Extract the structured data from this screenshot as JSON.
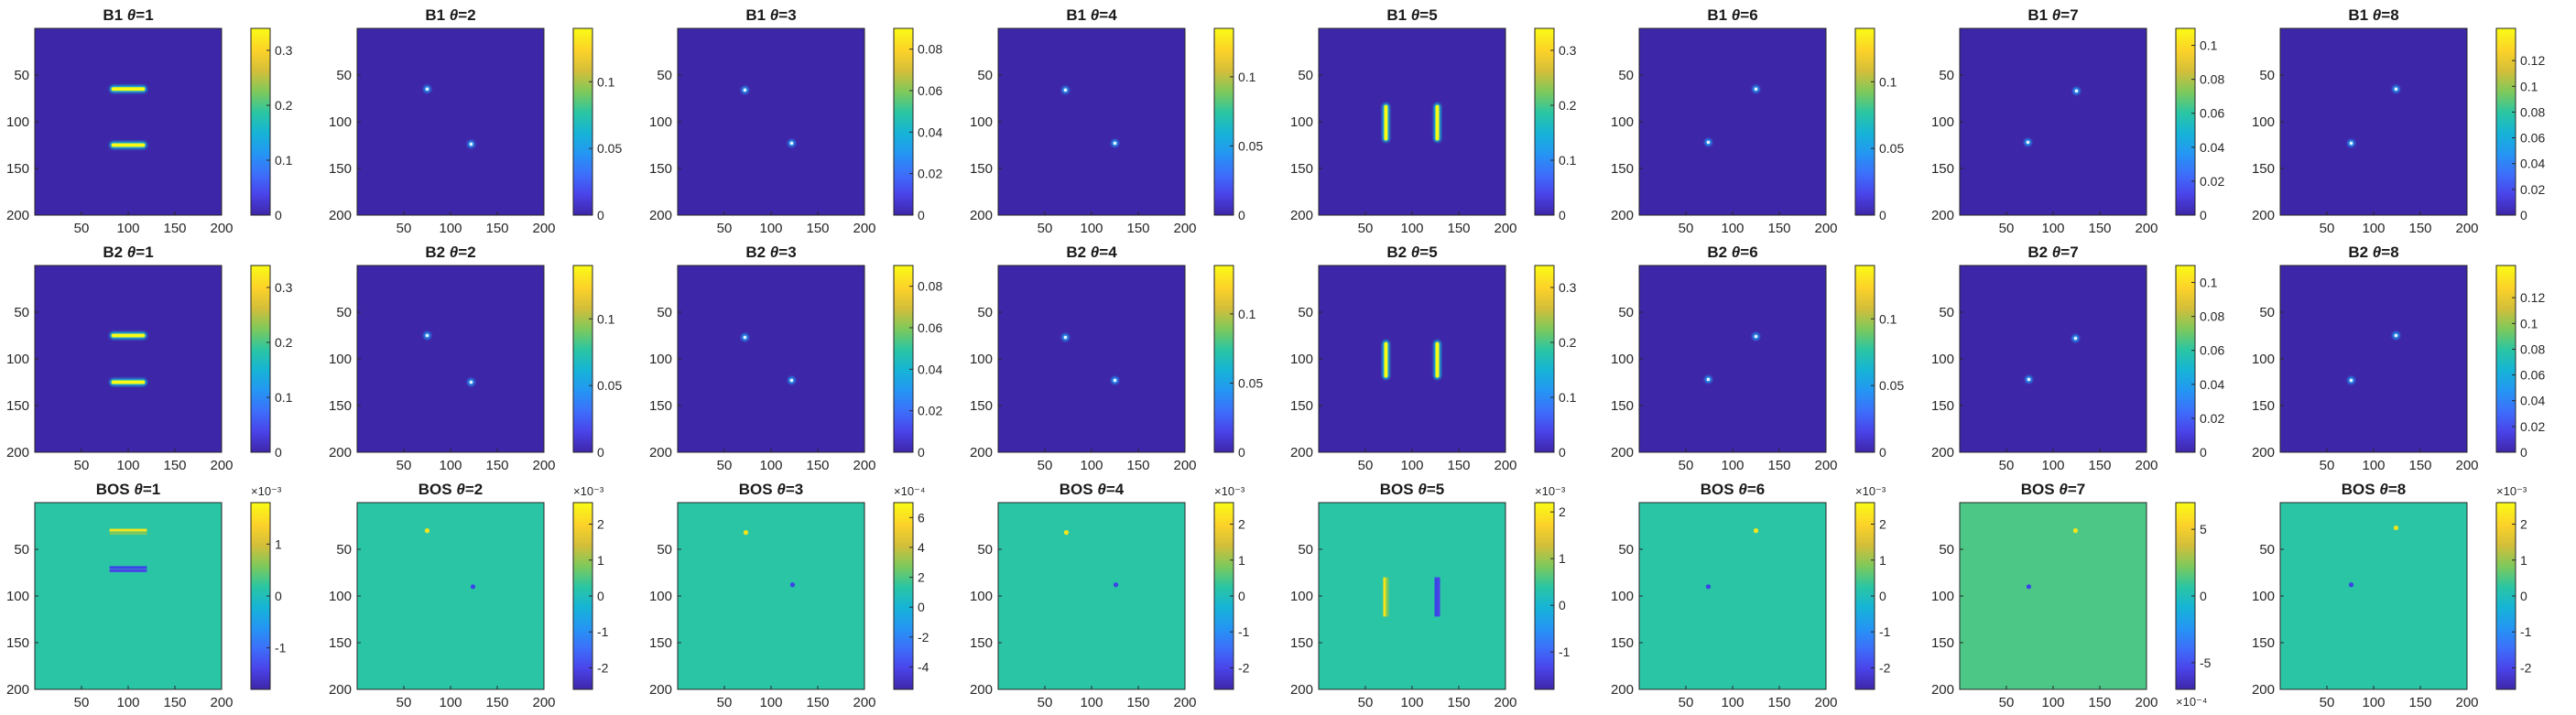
{
  "colors": {
    "background": "#3e26a8",
    "axis": "#262626",
    "colormap": [
      "#3e26a8",
      "#4a43e9",
      "#3d6ffb",
      "#2496f3",
      "#16b4d6",
      "#2bc6a2",
      "#7ec95b",
      "#d3be3a",
      "#fcd229",
      "#f9fb15"
    ]
  },
  "chart_data": {
    "type": "heatmap",
    "grid": "8 columns x 3 rows",
    "axes": {
      "x_ticks": [
        "50",
        "100",
        "150",
        "200"
      ],
      "y_ticks": [
        "50",
        "100",
        "150",
        "200"
      ],
      "xlim": [
        0,
        200
      ],
      "ylim": [
        0,
        200
      ]
    },
    "panels": [
      {
        "title_prefix": "B1",
        "theta": "1",
        "colorbar_ticks": [
          "0",
          "0.1",
          "0.2",
          "0.3"
        ],
        "colorbar_range": [
          0,
          0.34
        ],
        "feature": "horizontal bars at y=65 and y=125, x 80-120",
        "base": 0
      },
      {
        "title_prefix": "B1",
        "theta": "2",
        "colorbar_ticks": [
          "0",
          "0.05",
          "0.1"
        ],
        "colorbar_range": [
          0,
          0.14
        ],
        "feature": "points at (75,65) and (122,124)",
        "base": 0
      },
      {
        "title_prefix": "B1",
        "theta": "3",
        "colorbar_ticks": [
          "0",
          "0.02",
          "0.04",
          "0.06",
          "0.08"
        ],
        "colorbar_range": [
          0,
          0.09
        ],
        "feature": "points at (72,66) and (122,123)",
        "base": 0
      },
      {
        "title_prefix": "B1",
        "theta": "4",
        "colorbar_ticks": [
          "0",
          "0.05",
          "0.1"
        ],
        "colorbar_range": [
          0,
          0.135
        ],
        "feature": "points at (72,66) and (125,123)",
        "base": 0
      },
      {
        "title_prefix": "B1",
        "theta": "5",
        "colorbar_ticks": [
          "0",
          "0.1",
          "0.2",
          "0.3"
        ],
        "colorbar_range": [
          0,
          0.34
        ],
        "feature": "vertical bars at x=72 and x=127, y 80-122",
        "base": 0
      },
      {
        "title_prefix": "B1",
        "theta": "6",
        "colorbar_ticks": [
          "0",
          "0.05",
          "0.1"
        ],
        "colorbar_range": [
          0,
          0.14
        ],
        "feature": "points at (125,65) and (74,122)",
        "base": 0
      },
      {
        "title_prefix": "B1",
        "theta": "7",
        "colorbar_ticks": [
          "0",
          "0.02",
          "0.04",
          "0.06",
          "0.08",
          "0.1"
        ],
        "colorbar_range": [
          0,
          0.11
        ],
        "feature": "points at (125,67) and (73,122)",
        "base": 0
      },
      {
        "title_prefix": "B1",
        "theta": "8",
        "colorbar_ticks": [
          "0",
          "0.02",
          "0.04",
          "0.06",
          "0.08",
          "0.1",
          "0.12"
        ],
        "colorbar_range": [
          0,
          0.145
        ],
        "feature": "points at (124,65) and (76,123)",
        "base": 0
      },
      {
        "title_prefix": "B2",
        "theta": "1",
        "colorbar_ticks": [
          "0",
          "0.1",
          "0.2",
          "0.3"
        ],
        "colorbar_range": [
          0,
          0.34
        ],
        "feature": "horizontal bars at y=75 and y=125, x 80-120",
        "base": 0
      },
      {
        "title_prefix": "B2",
        "theta": "2",
        "colorbar_ticks": [
          "0",
          "0.05",
          "0.1"
        ],
        "colorbar_range": [
          0,
          0.14
        ],
        "feature": "points at (75,75) and (122,125)",
        "base": 0
      },
      {
        "title_prefix": "B2",
        "theta": "3",
        "colorbar_ticks": [
          "0",
          "0.02",
          "0.04",
          "0.06",
          "0.08"
        ],
        "colorbar_range": [
          0,
          0.09
        ],
        "feature": "points at (72,77) and (122,123)",
        "base": 0
      },
      {
        "title_prefix": "B2",
        "theta": "4",
        "colorbar_ticks": [
          "0",
          "0.05",
          "0.1"
        ],
        "colorbar_range": [
          0,
          0.135
        ],
        "feature": "points at (72,77) and (125,123)",
        "base": 0
      },
      {
        "title_prefix": "B2",
        "theta": "5",
        "colorbar_ticks": [
          "0",
          "0.1",
          "0.2",
          "0.3"
        ],
        "colorbar_range": [
          0,
          0.34
        ],
        "feature": "vertical bars at x=72 and x=127, y 80-122",
        "base": 0
      },
      {
        "title_prefix": "B2",
        "theta": "6",
        "colorbar_ticks": [
          "0",
          "0.05",
          "0.1"
        ],
        "colorbar_range": [
          0,
          0.14
        ],
        "feature": "points at (125,76) and (74,122)",
        "base": 0
      },
      {
        "title_prefix": "B2",
        "theta": "7",
        "colorbar_ticks": [
          "0",
          "0.02",
          "0.04",
          "0.06",
          "0.08",
          "0.1"
        ],
        "colorbar_range": [
          0,
          0.11
        ],
        "feature": "points at (124,78) and (74,122)",
        "base": 0
      },
      {
        "title_prefix": "B2",
        "theta": "8",
        "colorbar_ticks": [
          "0",
          "0.02",
          "0.04",
          "0.06",
          "0.08",
          "0.1",
          "0.12"
        ],
        "colorbar_range": [
          0,
          0.145
        ],
        "feature": "points at (124,75) and (76,123)",
        "base": 0
      },
      {
        "title_prefix": "BOS",
        "theta": "1",
        "colorbar_ticks": [
          "-1",
          "0",
          "1"
        ],
        "colorbar_range": [
          -1.8,
          1.8
        ],
        "colorbar_exponent": "×10⁻³",
        "feature": "horizontal bars at y=30-33 and y=70-73, x 80-120",
        "base": 0.55
      },
      {
        "title_prefix": "BOS",
        "theta": "2",
        "colorbar_ticks": [
          "-2",
          "-1",
          "0",
          "1",
          "2"
        ],
        "colorbar_range": [
          -2.6,
          2.6
        ],
        "colorbar_exponent": "×10⁻³",
        "feature": "points at (75,30) and (124,90)",
        "base": 0.55
      },
      {
        "title_prefix": "BOS",
        "theta": "3",
        "colorbar_ticks": [
          "-4",
          "-2",
          "0",
          "2",
          "4",
          "6"
        ],
        "colorbar_range": [
          -5.5,
          7
        ],
        "colorbar_exponent": "×10⁻⁴",
        "feature": "points at (73,32) and (123,88)",
        "base": 0.55
      },
      {
        "title_prefix": "BOS",
        "theta": "4",
        "colorbar_ticks": [
          "-2",
          "-1",
          "0",
          "1",
          "2"
        ],
        "colorbar_range": [
          -2.6,
          2.6
        ],
        "colorbar_exponent": "×10⁻³",
        "feature": "points at (73,32) and (126,88)",
        "base": 0.55
      },
      {
        "title_prefix": "BOS",
        "theta": "5",
        "colorbar_ticks": [
          "-1",
          "0",
          "1",
          "2"
        ],
        "colorbar_range": [
          -1.8,
          2.2
        ],
        "colorbar_exponent": "×10⁻³",
        "feature": "vertical bars at x=72 and x=127, y 80-122",
        "base": 0.55
      },
      {
        "title_prefix": "BOS",
        "theta": "6",
        "colorbar_ticks": [
          "-2",
          "-1",
          "0",
          "1",
          "2"
        ],
        "colorbar_range": [
          -2.6,
          2.6
        ],
        "colorbar_exponent": "×10⁻³",
        "feature": "points at (125,30) and (74,90)",
        "base": 0.55
      },
      {
        "title_prefix": "BOS",
        "theta": "7",
        "colorbar_ticks": [
          "-5",
          "0",
          "5"
        ],
        "colorbar_range": [
          -7,
          7
        ],
        "colorbar_exponent_bottom": "×10⁻⁴",
        "feature": "points at (124,30) and (74,90)",
        "base": 0.6
      },
      {
        "title_prefix": "BOS",
        "theta": "8",
        "colorbar_ticks": [
          "-2",
          "-1",
          "0",
          "1",
          "2"
        ],
        "colorbar_range": [
          -2.6,
          2.6
        ],
        "colorbar_exponent": "×10⁻³",
        "feature": "points at (124,27) and (76,88)",
        "base": 0.55
      }
    ]
  }
}
